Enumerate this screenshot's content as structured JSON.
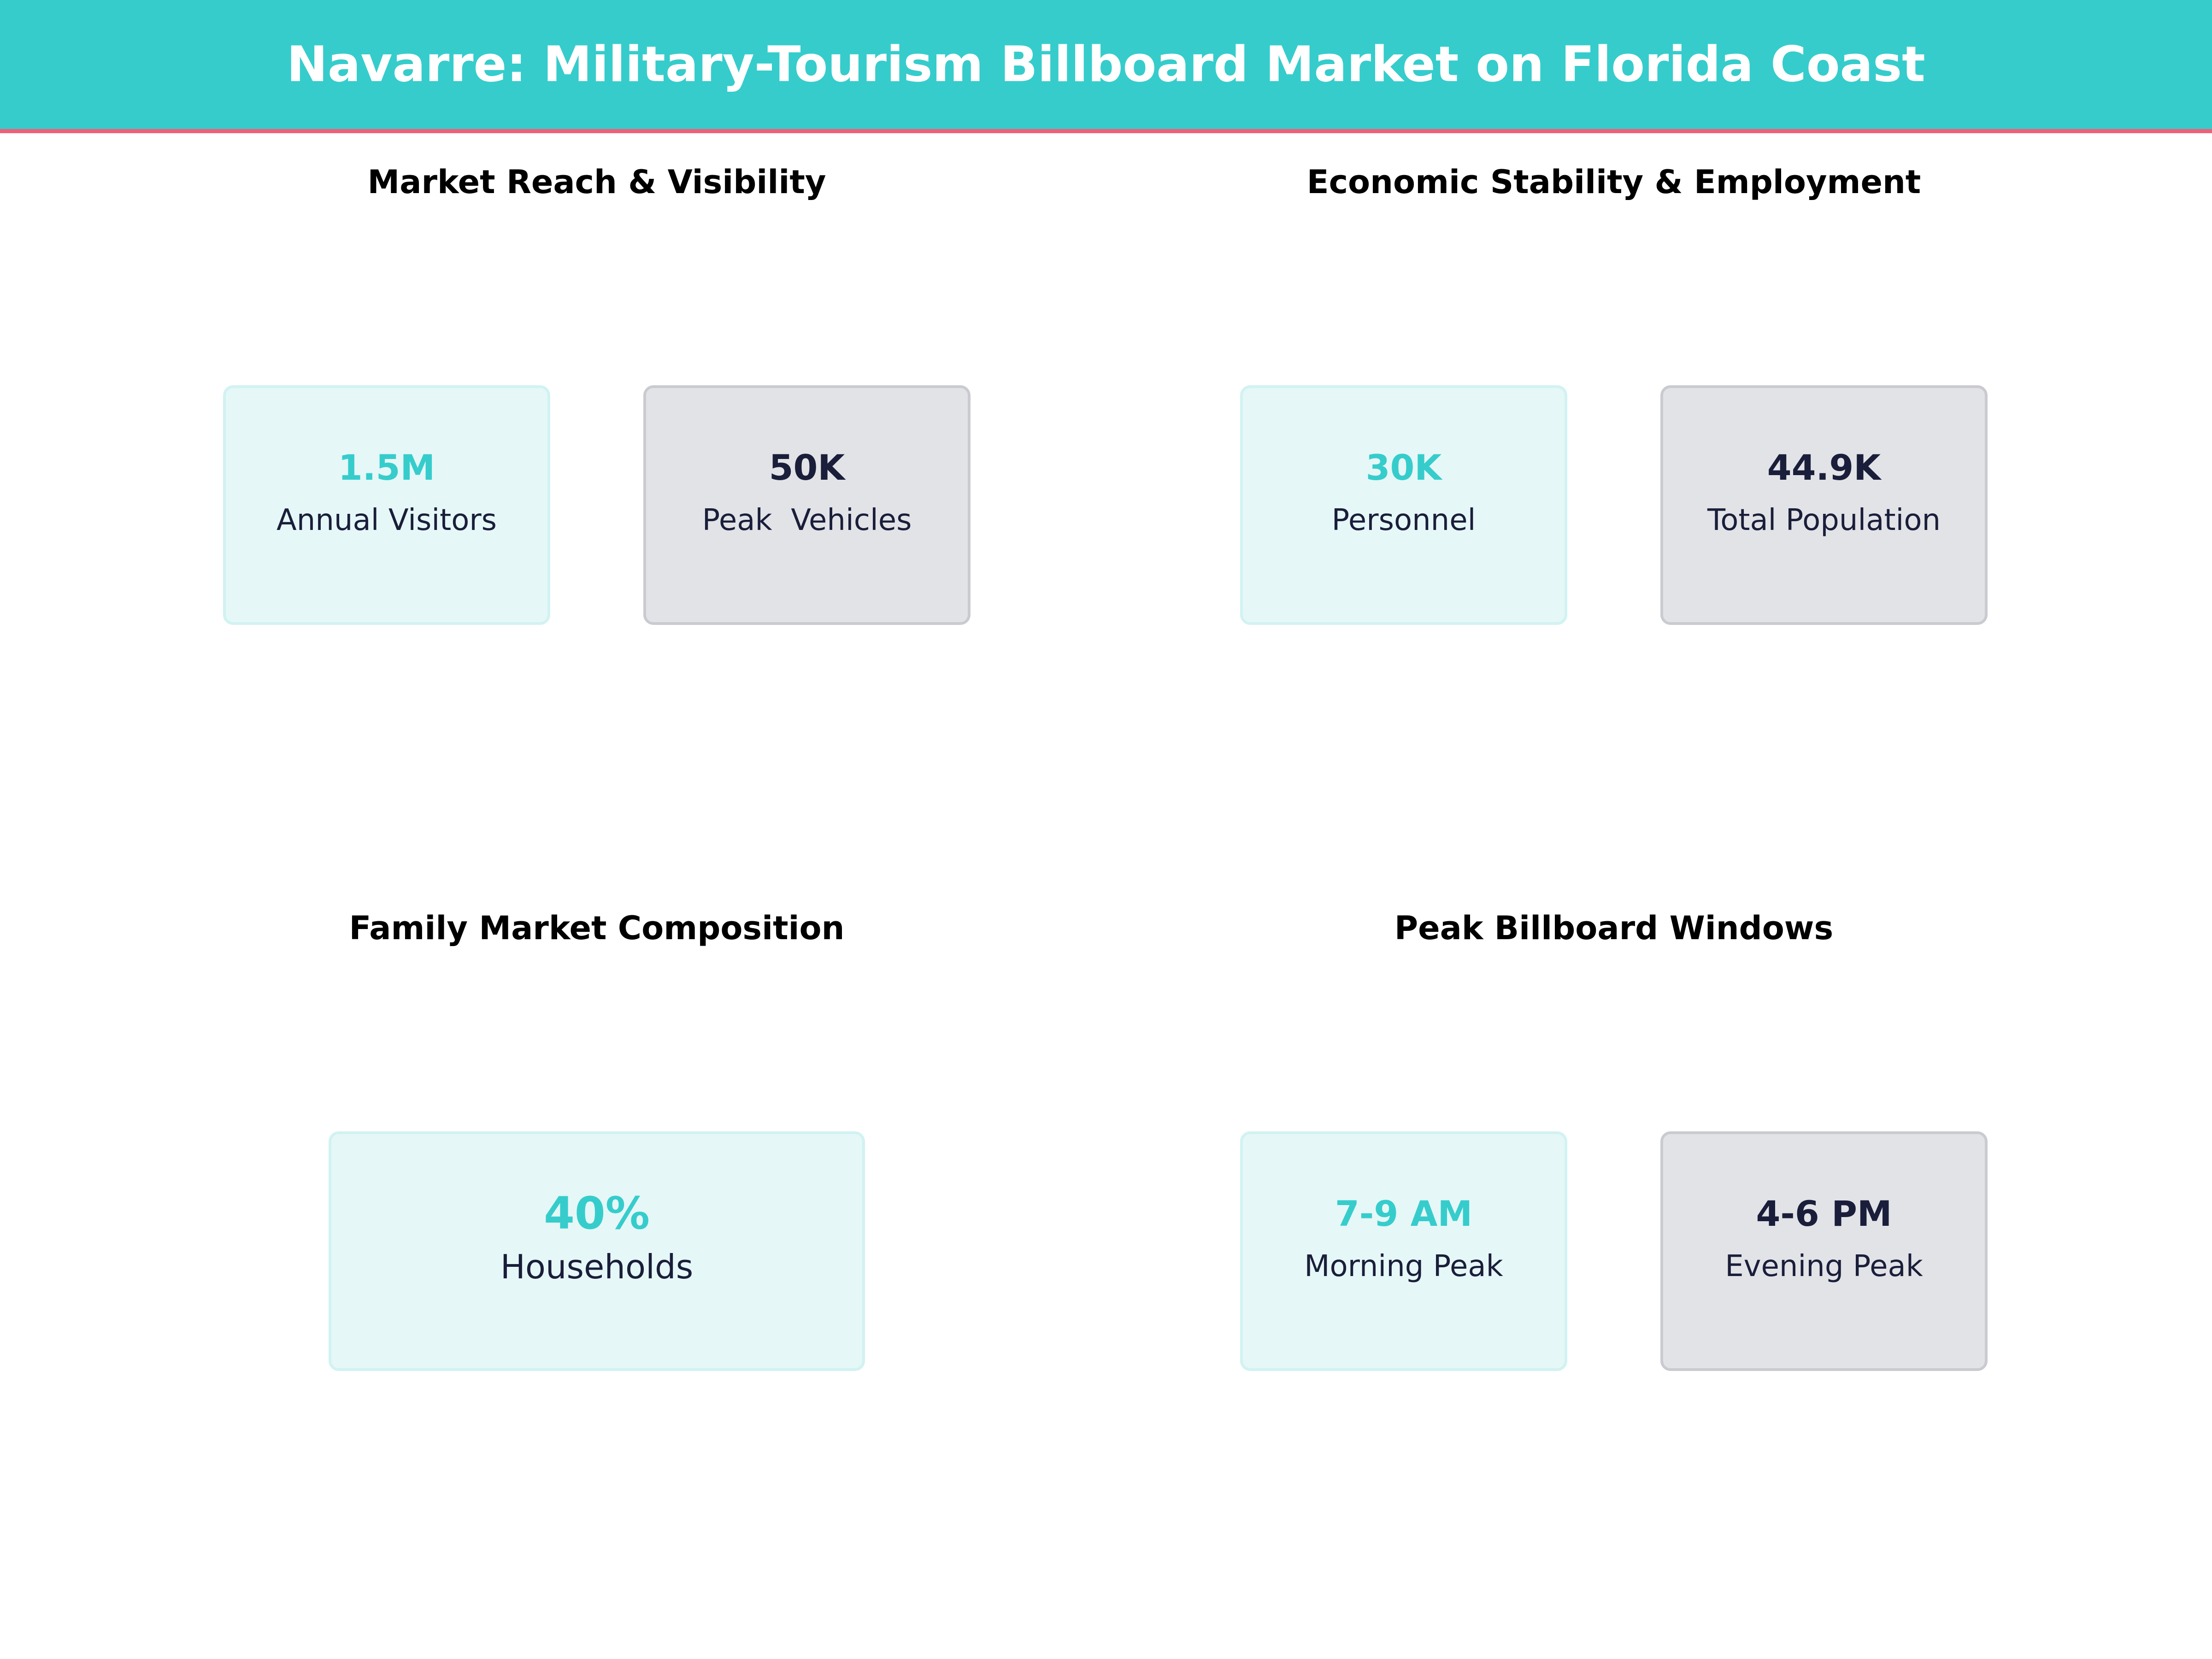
{
  "header": {
    "title": "Navarre: Military-Tourism Billboard Market on Florida Coast"
  },
  "colors": {
    "accent": "#36CCCC",
    "header_border": "#EF5F78",
    "dark_text": "#1A1E3A",
    "teal_card": "#E5F7F7",
    "gray_card": "#E2E3E7"
  },
  "sections": [
    {
      "title": "Market Reach & Visibility",
      "cards": [
        {
          "value": "1.5M",
          "label": "Annual Visitors"
        },
        {
          "value": "50K",
          "label": "Peak  Vehicles"
        }
      ]
    },
    {
      "title": "Economic Stability & Employment",
      "cards": [
        {
          "value": "30K",
          "label": "Personnel"
        },
        {
          "value": "44.9K",
          "label": "Total Population"
        }
      ]
    },
    {
      "title": "Family Market Composition",
      "cards": [
        {
          "value": "40%",
          "label": "Households"
        }
      ]
    },
    {
      "title": "Peak Billboard Windows",
      "cards": [
        {
          "value": "7-9 AM",
          "label": "Morning Peak"
        },
        {
          "value": "4-6 PM",
          "label": "Evening Peak"
        }
      ]
    }
  ]
}
